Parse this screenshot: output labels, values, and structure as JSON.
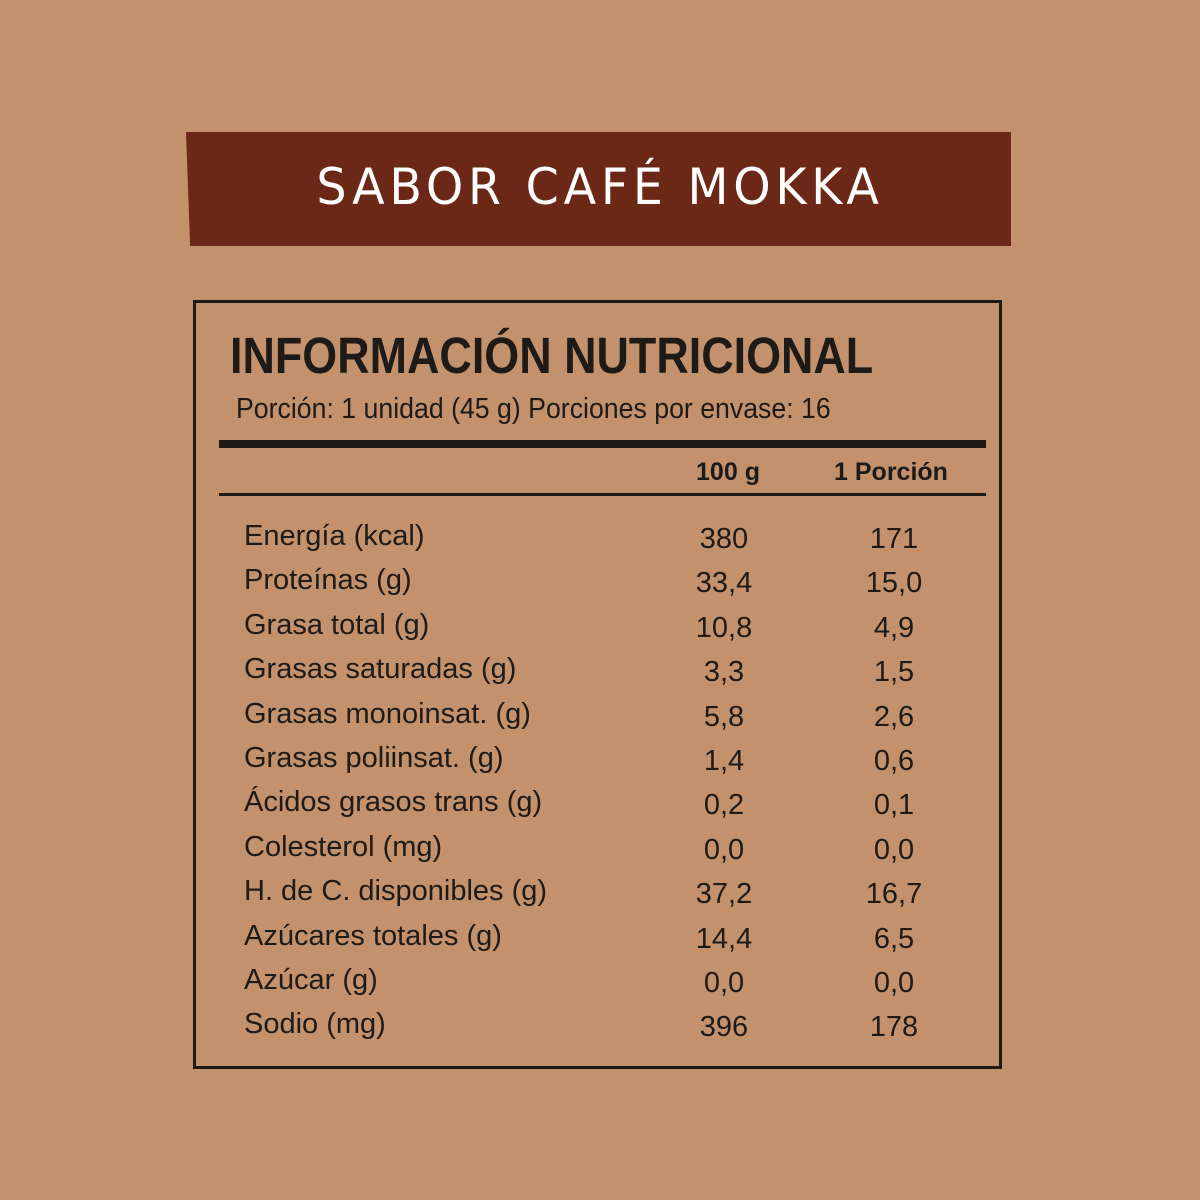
{
  "banner": {
    "title": "SABOR CAFÉ MOKKA",
    "color": "#6B2816"
  },
  "background_color": "#C3926C",
  "label": {
    "title": "INFORMACIÓN NUTRICIONAL",
    "serving": "Porción: 1 unidad (45 g) Porciones por envase: 16",
    "columns": [
      "100 g",
      "1 Porción"
    ],
    "rows": [
      {
        "name": "Energía (kcal)",
        "per100": "380",
        "perServing": "171"
      },
      {
        "name": "Proteínas (g)",
        "per100": "33,4",
        "perServing": "15,0"
      },
      {
        "name": "Grasa total (g)",
        "per100": "10,8",
        "perServing": "4,9"
      },
      {
        "name": "Grasas saturadas (g)",
        "per100": "3,3",
        "perServing": "1,5"
      },
      {
        "name": "Grasas monoinsat. (g)",
        "per100": "5,8",
        "perServing": "2,6"
      },
      {
        "name": "Grasas poliinsat. (g)",
        "per100": "1,4",
        "perServing": "0,6"
      },
      {
        "name": "Ácidos grasos trans (g)",
        "per100": "0,2",
        "perServing": "0,1"
      },
      {
        "name": "Colesterol (mg)",
        "per100": "0,0",
        "perServing": "0,0"
      },
      {
        "name": "H. de C. disponibles (g)",
        "per100": "37,2",
        "perServing": "16,7"
      },
      {
        "name": "Azúcares totales (g)",
        "per100": "14,4",
        "perServing": "6,5"
      },
      {
        "name": "Azúcar (g)",
        "per100": "0,0",
        "perServing": "0,0"
      },
      {
        "name": "Sodio (mg)",
        "per100": "396",
        "perServing": "178"
      }
    ]
  }
}
